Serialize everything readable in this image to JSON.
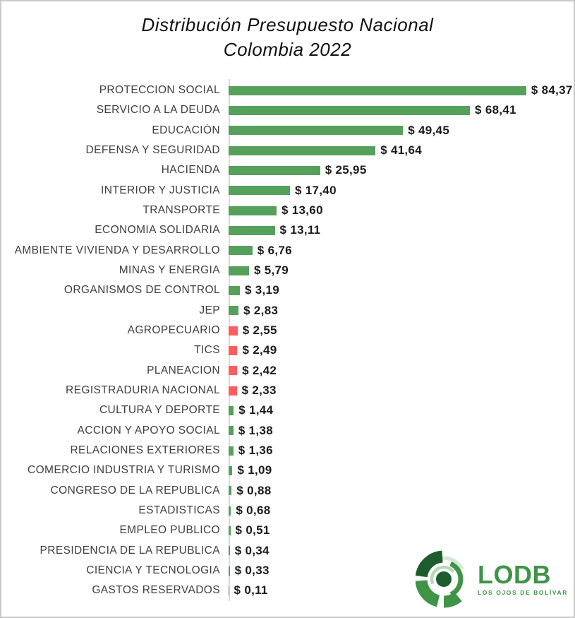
{
  "title": {
    "line1": "Distribución Presupuesto Nacional",
    "line2": "Colombia 2022"
  },
  "chart_data": {
    "type": "bar",
    "orientation": "horizontal",
    "value_prefix": "$",
    "xlim": [
      0,
      88
    ],
    "colors": {
      "green": "#55a05a",
      "red": "#fb5e5c"
    },
    "bars": [
      {
        "label": "PROTECCION SOCIAL",
        "value": 84.37,
        "display": "$ 84,37",
        "color": "green"
      },
      {
        "label": "SERVICIO A LA DEUDA",
        "value": 68.41,
        "display": "$ 68,41",
        "color": "green"
      },
      {
        "label": "EDUCACIÓN",
        "value": 49.45,
        "display": "$ 49,45",
        "color": "green"
      },
      {
        "label": "DEFENSA Y SEGURIDAD",
        "value": 41.64,
        "display": "$ 41,64",
        "color": "green"
      },
      {
        "label": "HACIENDA",
        "value": 25.95,
        "display": "$ 25,95",
        "color": "green"
      },
      {
        "label": "INTERIOR Y JUSTICIA",
        "value": 17.4,
        "display": "$ 17,40",
        "color": "green"
      },
      {
        "label": "TRANSPORTE",
        "value": 13.6,
        "display": "$ 13,60",
        "color": "green"
      },
      {
        "label": "ECONOMIA SOLIDARIA",
        "value": 13.11,
        "display": "$ 13,11",
        "color": "green"
      },
      {
        "label": "AMBIENTE VIVIENDA Y DESARROLLO",
        "value": 6.76,
        "display": "$ 6,76",
        "color": "green"
      },
      {
        "label": "MINAS Y ENERGIA",
        "value": 5.79,
        "display": "$ 5,79",
        "color": "green"
      },
      {
        "label": "ORGANISMOS DE CONTROL",
        "value": 3.19,
        "display": "$ 3,19",
        "color": "green"
      },
      {
        "label": "JEP",
        "value": 2.83,
        "display": "$ 2,83",
        "color": "green"
      },
      {
        "label": "AGROPECUARIO",
        "value": 2.55,
        "display": "$ 2,55",
        "color": "red"
      },
      {
        "label": "TICS",
        "value": 2.49,
        "display": "$ 2,49",
        "color": "red"
      },
      {
        "label": "PLANEACION",
        "value": 2.42,
        "display": "$ 2,42",
        "color": "red"
      },
      {
        "label": "REGISTRADURIA NACIONAL",
        "value": 2.33,
        "display": "$ 2,33",
        "color": "red"
      },
      {
        "label": "CULTURA Y DEPORTE",
        "value": 1.44,
        "display": "$ 1,44",
        "color": "green"
      },
      {
        "label": "ACCION Y APOYO SOCIAL",
        "value": 1.38,
        "display": "$ 1,38",
        "color": "green"
      },
      {
        "label": "RELACIONES EXTERIORES",
        "value": 1.36,
        "display": "$ 1,36",
        "color": "green"
      },
      {
        "label": "COMERCIO INDUSTRIA Y TURISMO",
        "value": 1.09,
        "display": "$ 1,09",
        "color": "green"
      },
      {
        "label": "CONGRESO DE LA REPUBLICA",
        "value": 0.88,
        "display": "$ 0,88",
        "color": "green"
      },
      {
        "label": "ESTADISTICAS",
        "value": 0.68,
        "display": "$ 0,68",
        "color": "green"
      },
      {
        "label": "EMPLEO PUBLICO",
        "value": 0.51,
        "display": "$ 0,51",
        "color": "green"
      },
      {
        "label": "PRESIDENCIA DE LA REPUBLICA",
        "value": 0.34,
        "display": "$ 0,34",
        "color": "green"
      },
      {
        "label": "CIENCIA Y TECNOLOGIA",
        "value": 0.33,
        "display": "$ 0,33",
        "color": "green"
      },
      {
        "label": "GASTOS RESERVADOS",
        "value": 0.11,
        "display": "$ 0,11",
        "color": "green"
      }
    ]
  },
  "logo": {
    "text": "LODB",
    "subtitle": "LOS OJOS DE BOLÍVAR",
    "color": "#3f9447"
  },
  "theme": {
    "bar_green": "#55a05a",
    "bar_red": "#fb5e5c",
    "logo_dark_green": "#1d5c2c",
    "logo_green": "#3f9447",
    "logo_light_green": "#b6dab8",
    "logo_pale_green": "#d4e9d5",
    "axis_line": "#d9d9d9",
    "border": "#c9c9c9",
    "text_dark": "#1c1c1c",
    "label_gray": "#3f3f3f"
  }
}
